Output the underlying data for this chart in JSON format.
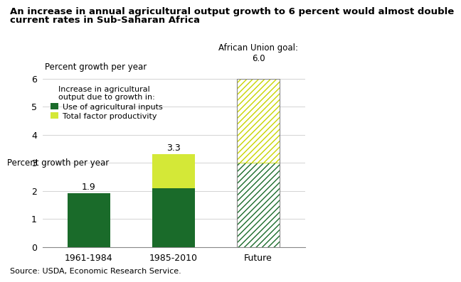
{
  "title_line1": "An increase in annual agricultural output growth to 6 percent would almost double",
  "title_line2": "current rates in Sub-Saharan Africa",
  "ylabel": "Percent growth per year",
  "source": "Source: USDA, Economic Research Service.",
  "categories": [
    "1961-1984",
    "1985-2010",
    "Future"
  ],
  "green_values": [
    1.9,
    2.1,
    3.0
  ],
  "yellow_values": [
    0.0,
    1.2,
    3.0
  ],
  "bar1_label": "1.9",
  "bar2_label": "3.3",
  "african_union_label": "African Union goal:",
  "african_union_value": "6.0",
  "legend_title": "Increase in agricultural\noutput due to growth in:",
  "legend_green": "Use of agricultural inputs",
  "legend_yellow": "Total factor productivity",
  "ylim": [
    0,
    6
  ],
  "yticks": [
    0,
    1,
    2,
    3,
    4,
    5,
    6
  ],
  "green_color": "#1a6b2a",
  "yellow_color": "#d4e837",
  "hatch_color_green": "#1a6b2a",
  "hatch_color_yellow": "#c8d400",
  "bg_color": "#ffffff",
  "bar_width": 0.5,
  "title_fontsize": 9.5,
  "axis_label_fontsize": 8.5,
  "tick_fontsize": 9,
  "bar_label_fontsize": 9,
  "legend_fontsize": 8,
  "source_fontsize": 8,
  "annot_fontsize": 8.5
}
